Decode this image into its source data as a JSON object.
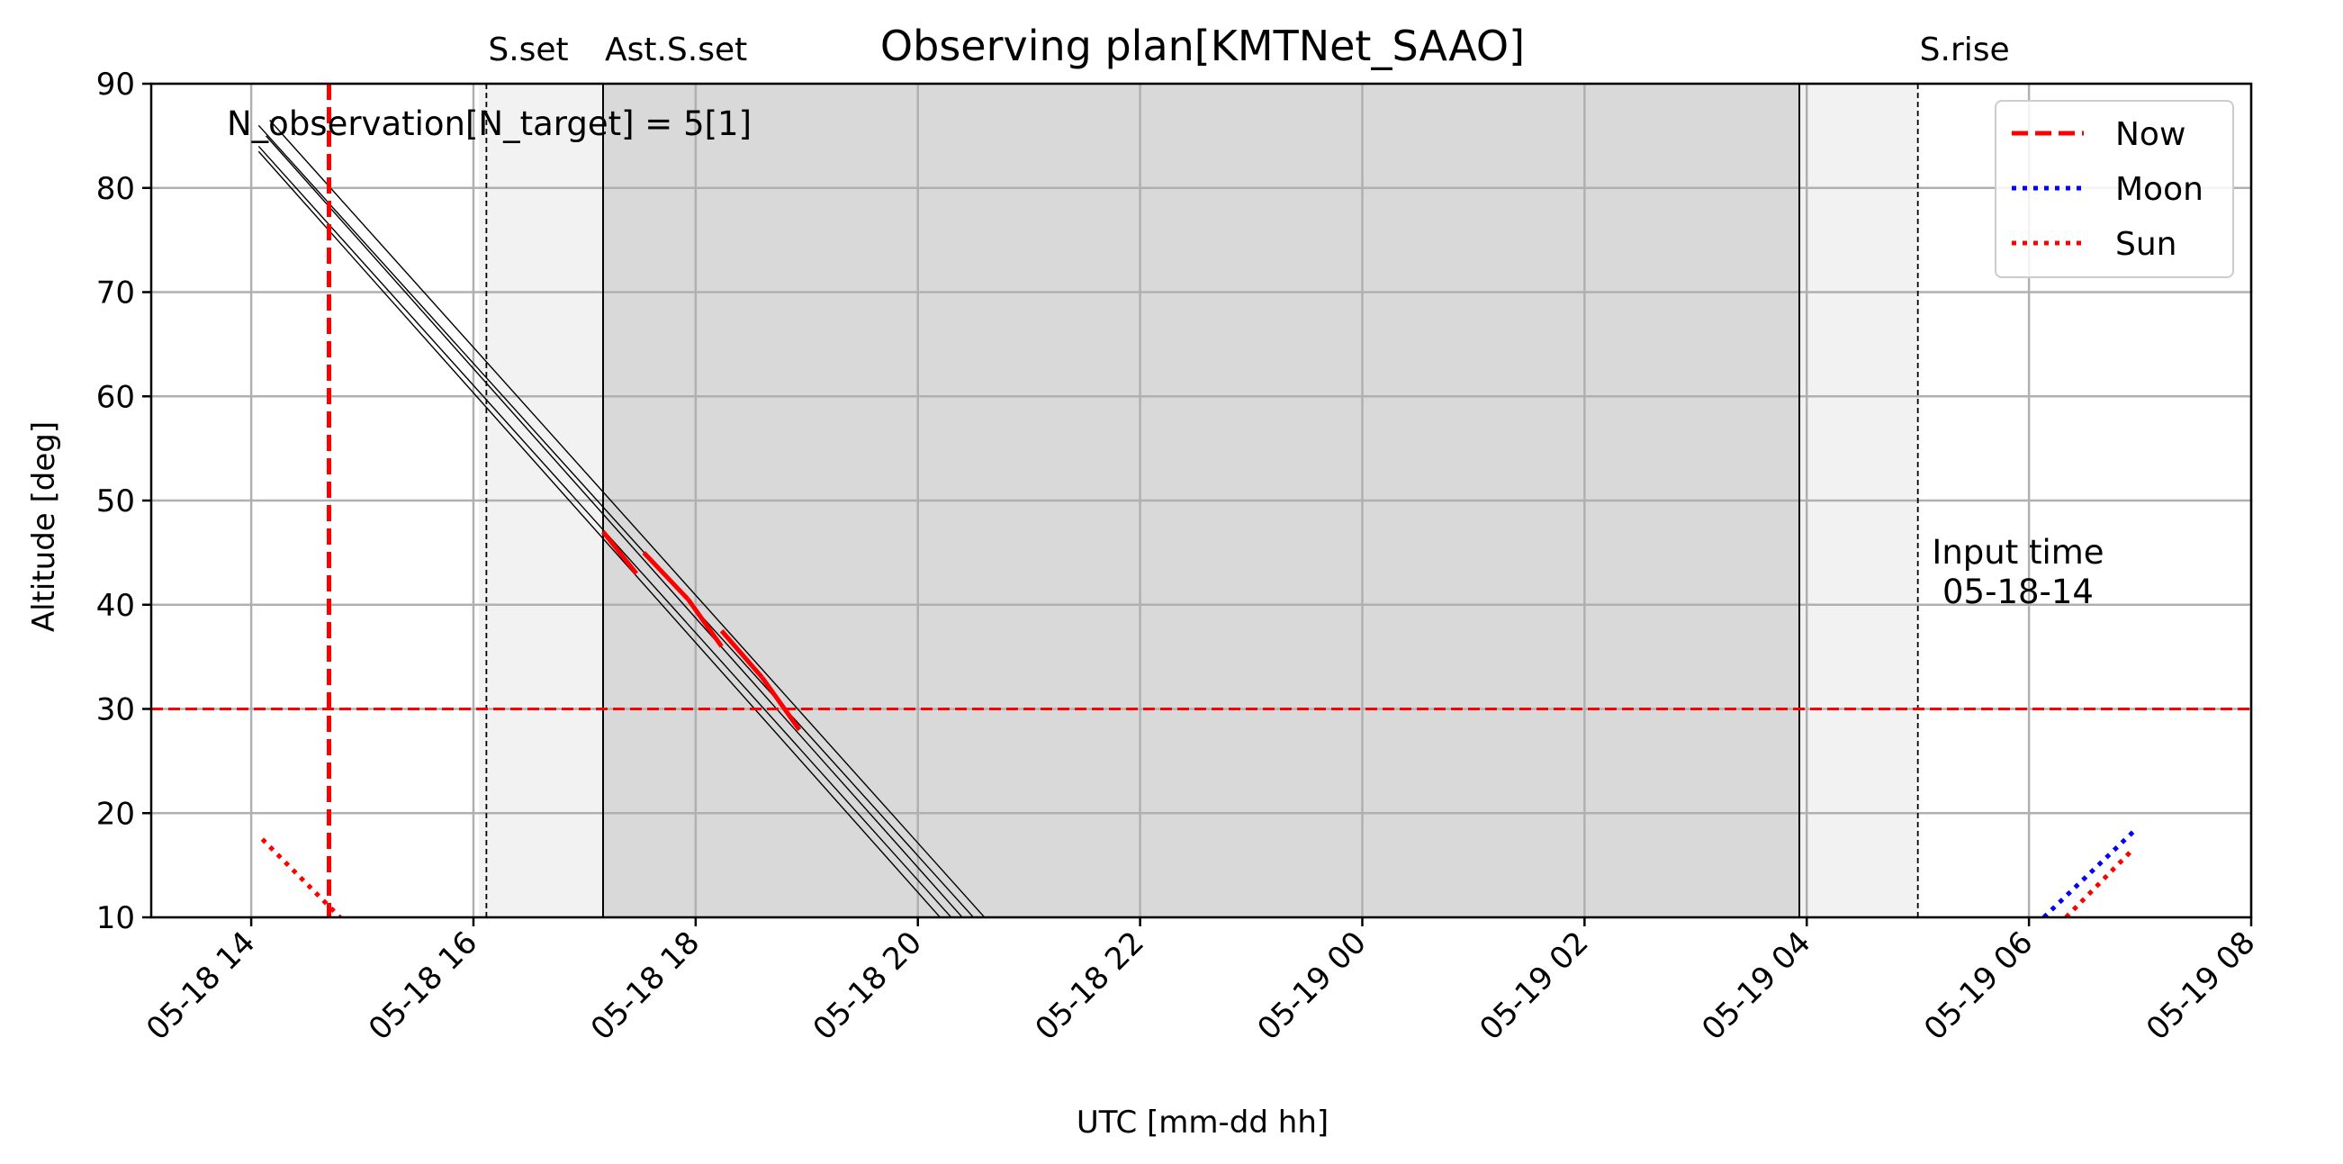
{
  "chart_data": {
    "type": "line",
    "title": "Observing plan[KMTNet_SAAO]",
    "xlabel": "UTC [mm-dd hh]",
    "ylabel": "Altitude [deg]",
    "xlim": [
      "05-18 13:06",
      "05-19 08:00"
    ],
    "ylim": [
      10,
      90
    ],
    "yticks": [
      10,
      20,
      30,
      40,
      50,
      60,
      70,
      80,
      90
    ],
    "xticks": [
      {
        "t": "05-18 14:00",
        "label": "05-18 14"
      },
      {
        "t": "05-18 16:00",
        "label": "05-18 16"
      },
      {
        "t": "05-18 18:00",
        "label": "05-18 18"
      },
      {
        "t": "05-18 20:00",
        "label": "05-18 20"
      },
      {
        "t": "05-18 22:00",
        "label": "05-18 22"
      },
      {
        "t": "05-19 00:00",
        "label": "05-19 00"
      },
      {
        "t": "05-19 02:00",
        "label": "05-19 02"
      },
      {
        "t": "05-19 04:00",
        "label": "05-19 04"
      },
      {
        "t": "05-19 06:00",
        "label": "05-19 06"
      },
      {
        "t": "05-19 08:00",
        "label": "05-19 08"
      }
    ],
    "grid": true,
    "legend_position": "top-right",
    "legend": [
      {
        "name": "Now",
        "style": "dashed",
        "color": "#ff0000"
      },
      {
        "name": "Moon",
        "style": "dotted",
        "color": "#0000ff"
      },
      {
        "name": "Sun",
        "style": "dotted",
        "color": "#ff0000"
      }
    ],
    "annotation": "N_observation[N_target] = 5[1]",
    "input_time_label": "Input time",
    "input_time_value": "05-18-14",
    "altitude_limit": 30,
    "now": "05-18 14:42",
    "events": [
      {
        "label": "S.set",
        "t": "05-18 16:07",
        "style": "dashed"
      },
      {
        "label": "Ast.S.set",
        "t": "05-18 17:10",
        "style": "solid"
      },
      {
        "label": "",
        "t": "05-19 03:56",
        "style": "solid"
      },
      {
        "label": "S.rise",
        "t": "05-19 05:00",
        "style": "dashed"
      }
    ],
    "twilight_shading": [
      {
        "from": "05-18 16:03",
        "to": "05-18 17:10",
        "shade": "#f2f2f2"
      },
      {
        "from": "05-18 17:10",
        "to": "05-19 03:56",
        "shade": "#d9d9d9"
      },
      {
        "from": "05-19 03:56",
        "to": "05-19 05:00",
        "shade": "#f2f2f2"
      }
    ],
    "series": [
      {
        "name": "",
        "kind": "target",
        "x": [
          "05-18 14:04",
          "05-18 20:30"
        ],
        "y": [
          86,
          10
        ]
      },
      {
        "name": "",
        "kind": "target",
        "x": [
          "05-18 14:08",
          "05-18 20:24"
        ],
        "y": [
          85,
          10
        ]
      },
      {
        "name": "",
        "kind": "target",
        "x": [
          "05-18 14:04",
          "05-18 20:18"
        ],
        "y": [
          84,
          10
        ]
      },
      {
        "name": "",
        "kind": "target",
        "x": [
          "05-18 14:04",
          "05-18 20:12"
        ],
        "y": [
          83.5,
          10
        ]
      },
      {
        "name": "",
        "kind": "target",
        "x": [
          "05-18 14:10",
          "05-18 20:36"
        ],
        "y": [
          86.5,
          10
        ]
      },
      {
        "name": "",
        "kind": "planned",
        "x": [
          "05-18 17:10",
          "05-18 17:28"
        ],
        "y": [
          47,
          43
        ]
      },
      {
        "name": "",
        "kind": "planned",
        "x": [
          "05-18 17:32",
          "05-18 17:56"
        ],
        "y": [
          45,
          40.5
        ]
      },
      {
        "name": "",
        "kind": "planned",
        "x": [
          "05-18 17:56",
          "05-18 18:14"
        ],
        "y": [
          40.5,
          36
        ]
      },
      {
        "name": "",
        "kind": "planned",
        "x": [
          "05-18 18:14",
          "05-18 18:36"
        ],
        "y": [
          37.5,
          33
        ]
      },
      {
        "name": "",
        "kind": "planned",
        "x": [
          "05-18 18:36",
          "05-18 18:56"
        ],
        "y": [
          33,
          28
        ]
      },
      {
        "name": "Sun",
        "kind": "sun",
        "x": [
          "05-18 14:06",
          "05-18 14:48"
        ],
        "y": [
          17.5,
          10
        ]
      },
      {
        "name": "Sun",
        "kind": "sun",
        "x": [
          "05-19 06:20",
          "05-19 06:56"
        ],
        "y": [
          10,
          16.5
        ]
      },
      {
        "name": "Moon",
        "kind": "moon",
        "x": [
          "05-19 06:08",
          "05-19 06:58"
        ],
        "y": [
          10,
          18.5
        ]
      }
    ]
  },
  "colors": {
    "now": "#ff0000",
    "limit": "#ff0000",
    "planned": "#ff0000",
    "sun": "#ff0000",
    "moon": "#0000ff",
    "target": "#000000",
    "grid": "#b0b0b0"
  }
}
